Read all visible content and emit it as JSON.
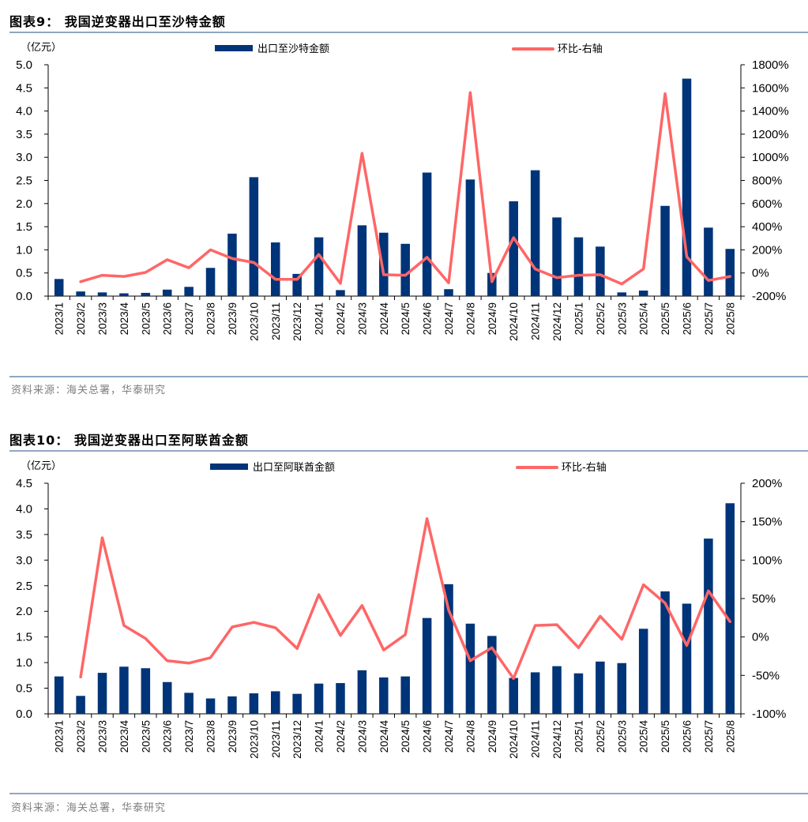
{
  "colors": {
    "bar": "#003478",
    "line": "#ff6666",
    "rule": "#8fa7c0",
    "source": "#7f7f7f"
  },
  "chart_data": [
    {
      "type": "bar+line",
      "title": "图表9： 我国逆变器出口至沙特金额",
      "unit_label": "（亿元）",
      "source": "资料来源：海关总署，华泰研究",
      "legend": {
        "bar": "出口至沙特金额",
        "line": "环比-右轴",
        "placement": "top"
      },
      "categories": [
        "2023/1",
        "2023/2",
        "2023/3",
        "2023/4",
        "2023/5",
        "2023/6",
        "2023/7",
        "2023/8",
        "2023/9",
        "2023/10",
        "2023/11",
        "2023/12",
        "2024/1",
        "2024/2",
        "2024/3",
        "2024/4",
        "2024/5",
        "2024/6",
        "2024/7",
        "2024/8",
        "2024/9",
        "2024/10",
        "2024/11",
        "2024/12",
        "2025/1",
        "2025/2",
        "2025/3",
        "2025/4",
        "2025/5",
        "2025/6",
        "2025/7",
        "2025/8"
      ],
      "left_axis": {
        "min": 0,
        "max": 5,
        "ticks": [
          "0.0",
          "0.5",
          "1.0",
          "1.5",
          "2.0",
          "2.5",
          "3.0",
          "3.5",
          "4.0",
          "4.5",
          "5.0"
        ]
      },
      "right_axis": {
        "min": -200,
        "max": 1800,
        "ticks": [
          "-200%",
          "0%",
          "200%",
          "400%",
          "600%",
          "800%",
          "1000%",
          "1200%",
          "1400%",
          "1600%",
          "1800%"
        ]
      },
      "series": [
        {
          "name": "出口至沙特金额",
          "axis": "left",
          "kind": "bar",
          "values": [
            0.37,
            0.1,
            0.08,
            0.06,
            0.07,
            0.14,
            0.2,
            0.61,
            1.35,
            2.57,
            1.16,
            0.48,
            1.27,
            0.13,
            1.53,
            1.37,
            1.13,
            2.67,
            0.15,
            2.52,
            0.5,
            2.05,
            2.72,
            1.7,
            1.27,
            1.07,
            0.08,
            0.12,
            1.95,
            4.7,
            1.48,
            1.02
          ]
        },
        {
          "name": "环比-右轴",
          "axis": "right",
          "kind": "line",
          "unit": "%",
          "values": [
            null,
            -75,
            -20,
            -30,
            5,
            115,
            45,
            200,
            125,
            90,
            -55,
            -55,
            160,
            -90,
            1035,
            -15,
            -20,
            135,
            -85,
            1560,
            -75,
            305,
            35,
            -40,
            -20,
            -15,
            -95,
            35,
            1550,
            140,
            -65,
            -30
          ]
        }
      ]
    },
    {
      "type": "bar+line",
      "title": "图表10： 我国逆变器出口至阿联酋金额",
      "unit_label": "（亿元）",
      "source": "资料来源：海关总署，华泰研究",
      "legend": {
        "bar": "出口至阿联酋金额",
        "line": "环比-右轴",
        "placement": "top"
      },
      "categories": [
        "2023/1",
        "2023/2",
        "2023/3",
        "2023/4",
        "2023/5",
        "2023/6",
        "2023/7",
        "2023/8",
        "2023/9",
        "2023/10",
        "2023/11",
        "2023/12",
        "2024/1",
        "2024/2",
        "2024/3",
        "2024/4",
        "2024/5",
        "2024/6",
        "2024/7",
        "2024/8",
        "2024/9",
        "2024/10",
        "2024/11",
        "2024/12",
        "2025/1",
        "2025/2",
        "2025/3",
        "2025/4",
        "2025/5",
        "2025/6",
        "2025/7",
        "2025/8"
      ],
      "left_axis": {
        "min": 0,
        "max": 4.5,
        "ticks": [
          "0.0",
          "0.5",
          "1.0",
          "1.5",
          "2.0",
          "2.5",
          "3.0",
          "3.5",
          "4.0",
          "4.5"
        ]
      },
      "right_axis": {
        "min": -100,
        "max": 200,
        "ticks": [
          "-100%",
          "-50%",
          "0%",
          "50%",
          "100%",
          "150%",
          "200%"
        ]
      },
      "series": [
        {
          "name": "出口至阿联酋金额",
          "axis": "left",
          "kind": "bar",
          "values": [
            0.73,
            0.35,
            0.8,
            0.92,
            0.89,
            0.62,
            0.41,
            0.3,
            0.34,
            0.4,
            0.44,
            0.39,
            0.59,
            0.6,
            0.85,
            0.71,
            0.73,
            1.87,
            2.53,
            1.76,
            1.52,
            0.7,
            0.81,
            0.93,
            0.79,
            1.02,
            0.99,
            1.66,
            2.39,
            2.15,
            3.42,
            4.11
          ]
        },
        {
          "name": "环比-右轴",
          "axis": "right",
          "kind": "line",
          "unit": "%",
          "values": [
            null,
            -52,
            129,
            15,
            -2,
            -31,
            -34,
            -27,
            13,
            19,
            12,
            -15,
            55,
            2,
            41,
            -17,
            3,
            154,
            35,
            -31,
            -14,
            -54,
            15,
            16,
            -14,
            27,
            -3,
            68,
            44,
            -11,
            60,
            20
          ]
        }
      ]
    }
  ]
}
